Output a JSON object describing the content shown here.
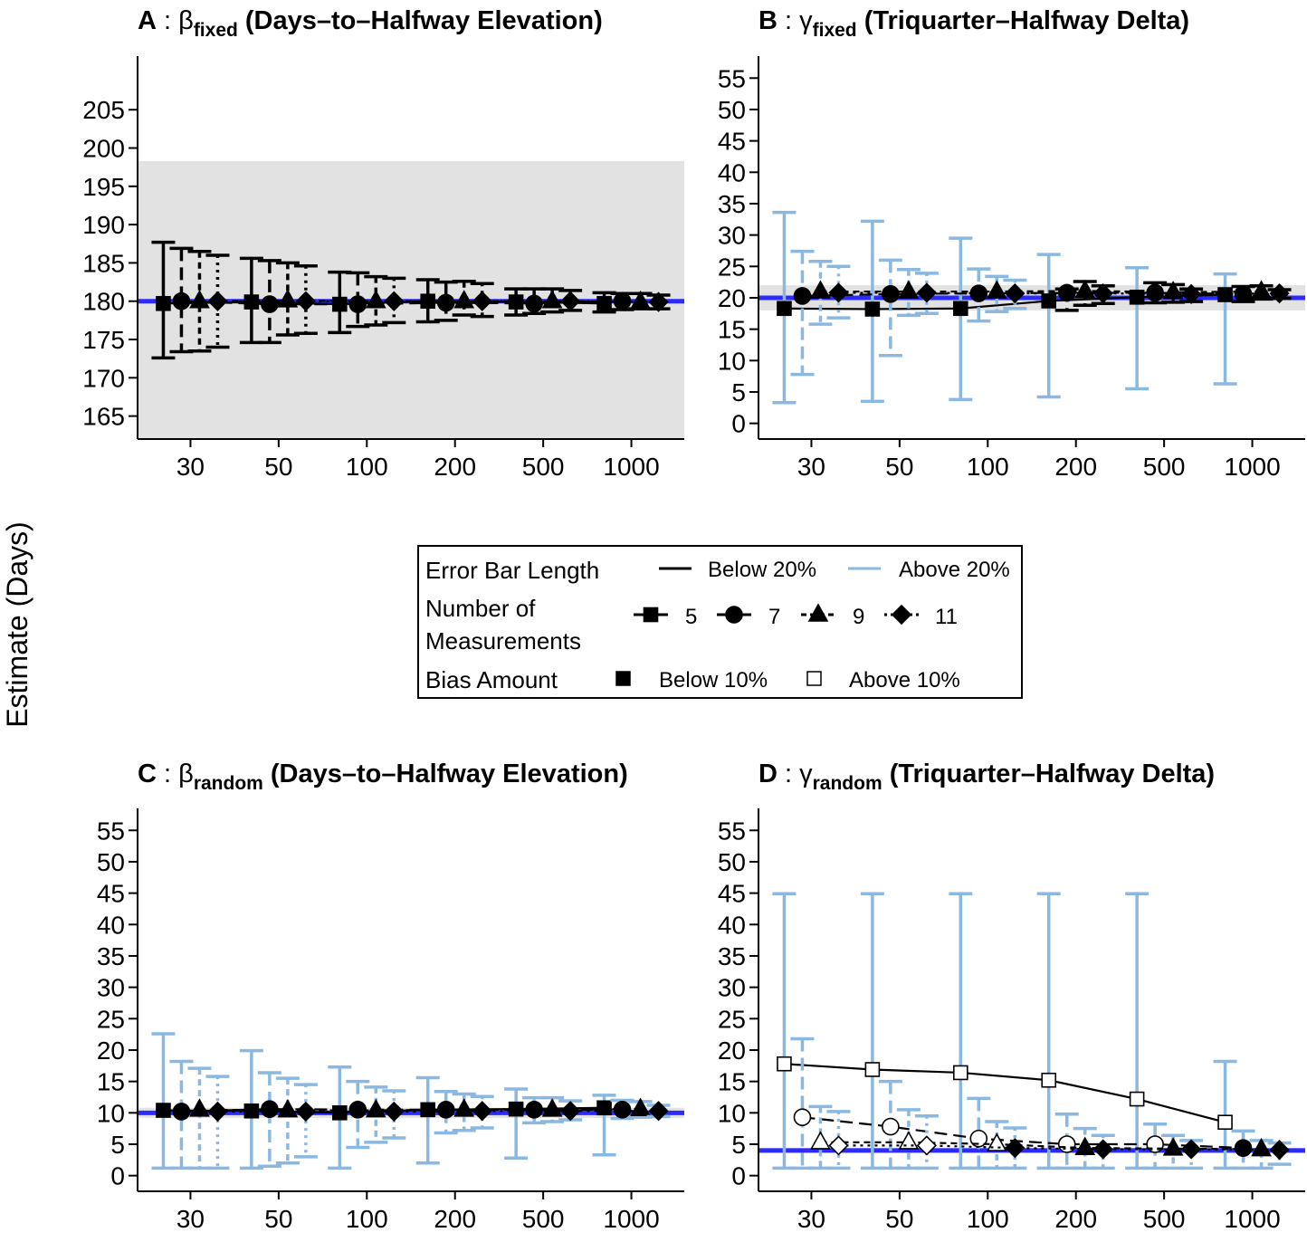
{
  "figure": {
    "y_axis_label": "Estimate (Days)"
  },
  "legend": {
    "error_bar_title": "Error Bar Length",
    "error_bar_below": "Below 20%",
    "error_bar_above": "Above 20%",
    "measurements_title_line1": "Number of",
    "measurements_title_line2": "Measurements",
    "measurement_levels": [
      "5",
      "7",
      "9",
      "11"
    ],
    "bias_title": "Bias Amount",
    "bias_below": "Below 10%",
    "bias_above": "Above 10%"
  },
  "colors": {
    "true_value_line": "#2b2bff",
    "short_error_bar": "#000000",
    "long_error_bar": "#8ab8e0",
    "shaded_band": "#e2e2e2"
  },
  "chart_data": [
    {
      "id": "A",
      "type": "scatter",
      "title_letter": "A",
      "title_symbol": "β",
      "title_subscript": "fixed",
      "title_text": "(Days–to–Halfway Elevation)",
      "x_categories": [
        "30",
        "50",
        "100",
        "200",
        "500",
        "1000"
      ],
      "series_names": [
        "5",
        "7",
        "9",
        "11"
      ],
      "ylim": [
        162,
        212
      ],
      "yticks": [
        165,
        170,
        175,
        180,
        185,
        190,
        195,
        200,
        205
      ],
      "true_value": 180,
      "band": [
        161.8,
        198.3
      ],
      "points": {
        "5": [
          [
            179.7,
            172.6,
            187.7,
            0,
            0
          ],
          [
            179.9,
            174.6,
            185.6,
            0,
            0
          ],
          [
            179.6,
            175.9,
            183.8,
            0,
            0
          ],
          [
            180.0,
            177.3,
            182.8,
            0,
            0
          ],
          [
            179.9,
            178.2,
            181.6,
            0,
            0
          ],
          [
            179.7,
            178.6,
            181.1,
            0,
            0
          ]
        ],
        "7": [
          [
            180.0,
            173.4,
            186.9,
            0,
            0
          ],
          [
            179.6,
            174.6,
            185.3,
            0,
            0
          ],
          [
            179.6,
            176.7,
            183.7,
            0,
            0
          ],
          [
            179.8,
            177.5,
            182.5,
            0,
            0
          ],
          [
            179.7,
            178.4,
            181.6,
            0,
            0
          ],
          [
            180.0,
            178.9,
            181.0,
            0,
            0
          ]
        ],
        "9": [
          [
            180.0,
            173.5,
            186.5,
            0,
            0
          ],
          [
            180.1,
            175.6,
            185.0,
            0,
            0
          ],
          [
            180.0,
            176.9,
            183.2,
            0,
            0
          ],
          [
            180.0,
            178.2,
            182.6,
            0,
            0
          ],
          [
            180.0,
            178.6,
            181.6,
            0,
            0
          ],
          [
            179.9,
            179.0,
            181.0,
            0,
            0
          ]
        ],
        "11": [
          [
            180.0,
            174.0,
            186.0,
            0,
            0
          ],
          [
            180.0,
            175.8,
            184.6,
            0,
            0
          ],
          [
            180.0,
            177.2,
            183.0,
            0,
            0
          ],
          [
            180.0,
            178.0,
            182.3,
            0,
            0
          ],
          [
            180.0,
            178.8,
            181.4,
            0,
            0
          ],
          [
            179.9,
            179.0,
            180.8,
            0,
            0
          ]
        ]
      }
    },
    {
      "id": "B",
      "type": "scatter",
      "title_letter": "B",
      "title_symbol": "γ",
      "title_subscript": "fixed",
      "title_text": "(Triquarter–Halfway Delta)",
      "x_categories": [
        "30",
        "50",
        "100",
        "200",
        "500",
        "1000"
      ],
      "series_names": [
        "5",
        "7",
        "9",
        "11"
      ],
      "ylim": [
        -2.5,
        58.5
      ],
      "yticks": [
        0,
        5,
        10,
        15,
        20,
        25,
        30,
        35,
        40,
        45,
        50,
        55
      ],
      "true_value": 20,
      "band": [
        18,
        22
      ],
      "points": {
        "5": [
          [
            18.3,
            3.3,
            33.6,
            1,
            0
          ],
          [
            18.2,
            3.5,
            32.2,
            1,
            0
          ],
          [
            18.3,
            3.8,
            29.5,
            1,
            0
          ],
          [
            19.5,
            4.2,
            26.9,
            1,
            0
          ],
          [
            20.1,
            5.5,
            24.8,
            1,
            0
          ],
          [
            20.5,
            6.3,
            23.8,
            1,
            0
          ]
        ],
        "7": [
          [
            20.3,
            7.8,
            27.4,
            1,
            0
          ],
          [
            20.6,
            10.8,
            26.0,
            1,
            0
          ],
          [
            20.7,
            16.3,
            24.6,
            1,
            0
          ],
          [
            20.8,
            18.0,
            21.4,
            0,
            0
          ],
          [
            20.8,
            19.2,
            22.4,
            0,
            0
          ],
          [
            20.6,
            19.4,
            21.8,
            0,
            0
          ]
        ],
        "9": [
          [
            21.0,
            15.8,
            25.8,
            1,
            0
          ],
          [
            21.0,
            17.2,
            24.5,
            1,
            0
          ],
          [
            21.0,
            17.8,
            23.4,
            1,
            0
          ],
          [
            21.1,
            18.8,
            22.6,
            0,
            0
          ],
          [
            20.9,
            19.3,
            22.1,
            0,
            0
          ],
          [
            21.0,
            19.8,
            21.9,
            0,
            0
          ]
        ],
        "11": [
          [
            20.8,
            16.8,
            25.0,
            1,
            0
          ],
          [
            20.8,
            17.5,
            23.9,
            1,
            0
          ],
          [
            20.7,
            18.3,
            22.8,
            1,
            0
          ],
          [
            20.7,
            19.1,
            21.9,
            0,
            0
          ],
          [
            20.6,
            19.4,
            21.4,
            0,
            0
          ],
          [
            20.7,
            19.9,
            21.3,
            0,
            0
          ]
        ]
      }
    },
    {
      "id": "C",
      "type": "scatter",
      "title_letter": "C",
      "title_symbol": "β",
      "title_subscript": "random",
      "title_text": "(Days–to–Halfway Elevation)",
      "x_categories": [
        "30",
        "50",
        "100",
        "200",
        "500",
        "1000"
      ],
      "series_names": [
        "5",
        "7",
        "9",
        "11"
      ],
      "ylim": [
        -2.5,
        58.5
      ],
      "yticks": [
        0,
        5,
        10,
        15,
        20,
        25,
        30,
        35,
        40,
        45,
        50,
        55
      ],
      "true_value": 10,
      "band": [
        9.2,
        10.8
      ],
      "points": {
        "5": [
          [
            10.4,
            1.2,
            22.6,
            1,
            0
          ],
          [
            10.3,
            1.2,
            19.9,
            1,
            0
          ],
          [
            10.0,
            1.2,
            17.3,
            1,
            0
          ],
          [
            10.5,
            2.0,
            15.6,
            1,
            0
          ],
          [
            10.6,
            2.8,
            13.8,
            1,
            0
          ],
          [
            10.8,
            3.3,
            12.8,
            1,
            0
          ]
        ],
        "7": [
          [
            10.2,
            1.2,
            18.2,
            1,
            0
          ],
          [
            10.6,
            1.5,
            16.4,
            1,
            0
          ],
          [
            10.5,
            4.5,
            15.0,
            1,
            0
          ],
          [
            10.5,
            6.8,
            13.4,
            1,
            0
          ],
          [
            10.5,
            8.4,
            12.4,
            1,
            0
          ],
          [
            10.5,
            9.1,
            12.0,
            1,
            0
          ]
        ],
        "9": [
          [
            10.5,
            1.2,
            17.1,
            1,
            0
          ],
          [
            10.4,
            2.0,
            15.5,
            1,
            0
          ],
          [
            10.4,
            5.3,
            14.1,
            1,
            0
          ],
          [
            10.5,
            7.2,
            13.0,
            1,
            0
          ],
          [
            10.5,
            8.6,
            12.4,
            1,
            0
          ],
          [
            10.6,
            9.3,
            11.8,
            1,
            0
          ]
        ],
        "11": [
          [
            10.2,
            1.2,
            15.8,
            1,
            0
          ],
          [
            10.2,
            3.0,
            14.5,
            1,
            0
          ],
          [
            10.2,
            6.0,
            13.5,
            1,
            0
          ],
          [
            10.3,
            7.6,
            12.6,
            1,
            0
          ],
          [
            10.3,
            8.9,
            11.9,
            1,
            0
          ],
          [
            10.3,
            9.4,
            11.2,
            1,
            0
          ]
        ]
      }
    },
    {
      "id": "D",
      "type": "scatter",
      "title_letter": "D",
      "title_symbol": "γ",
      "title_subscript": "random",
      "title_text": "(Triquarter–Halfway Delta)",
      "x_categories": [
        "30",
        "50",
        "100",
        "200",
        "500",
        "1000"
      ],
      "series_names": [
        "5",
        "7",
        "9",
        "11"
      ],
      "ylim": [
        -2.5,
        58.5
      ],
      "yticks": [
        0,
        5,
        10,
        15,
        20,
        25,
        30,
        35,
        40,
        45,
        50,
        55
      ],
      "true_value": 4,
      "band": [
        3.6,
        4.4
      ],
      "points": {
        "5": [
          [
            17.8,
            1.2,
            44.9,
            1,
            1
          ],
          [
            16.9,
            1.2,
            44.9,
            1,
            1
          ],
          [
            16.4,
            1.2,
            44.9,
            1,
            1
          ],
          [
            15.2,
            1.2,
            44.9,
            1,
            1
          ],
          [
            12.2,
            1.2,
            44.9,
            1,
            1
          ],
          [
            8.5,
            1.2,
            18.2,
            1,
            1
          ]
        ],
        "7": [
          [
            9.3,
            1.2,
            21.8,
            1,
            1
          ],
          [
            7.8,
            1.2,
            15.0,
            1,
            1
          ],
          [
            5.9,
            1.2,
            12.3,
            1,
            1
          ],
          [
            5.0,
            1.2,
            9.8,
            1,
            1
          ],
          [
            5.0,
            1.2,
            8.2,
            1,
            1
          ],
          [
            4.4,
            1.2,
            7.1,
            1,
            0
          ]
        ],
        "9": [
          [
            5.3,
            1.2,
            11.0,
            1,
            1
          ],
          [
            5.3,
            1.2,
            10.5,
            1,
            1
          ],
          [
            5.0,
            1.2,
            8.6,
            1,
            1
          ],
          [
            4.4,
            1.2,
            7.5,
            1,
            0
          ],
          [
            4.3,
            1.2,
            6.4,
            1,
            0
          ],
          [
            4.2,
            1.2,
            5.6,
            1,
            0
          ]
        ],
        "11": [
          [
            4.8,
            1.2,
            10.2,
            1,
            1
          ],
          [
            4.8,
            1.2,
            9.5,
            1,
            1
          ],
          [
            4.4,
            1.2,
            7.6,
            1,
            0
          ],
          [
            4.2,
            1.2,
            6.4,
            1,
            0
          ],
          [
            4.2,
            1.2,
            5.6,
            1,
            0
          ],
          [
            4.1,
            1.8,
            5.2,
            1,
            0
          ]
        ]
      }
    }
  ]
}
